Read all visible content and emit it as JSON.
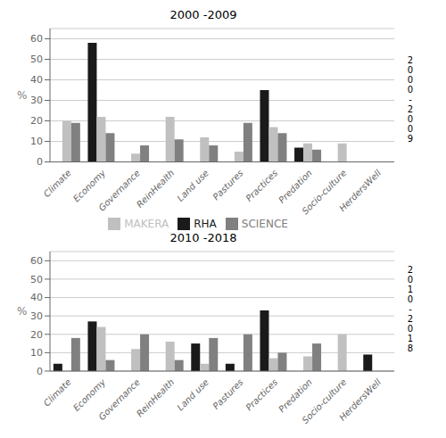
{
  "chart_data": [
    {
      "type": "bar",
      "title": "2000 -2009",
      "annotation": "2\n0\n0\n0\n-\n2\n0\n0\n9",
      "categories": [
        "Climate",
        "Economy",
        "Governance",
        "ReinHealth",
        "Land use",
        "Pastures",
        "Practices",
        "Predation",
        "Socio-culture",
        "HerdersWell"
      ],
      "series": [
        {
          "name": "RHA",
          "color": "#1a1a1a",
          "values": [
            0,
            58,
            0,
            0,
            0,
            0,
            35,
            7,
            0,
            0
          ]
        },
        {
          "name": "MAKERA",
          "color": "#c0c0c0",
          "values": [
            20,
            22,
            4,
            22,
            12,
            5,
            17,
            9,
            9,
            0
          ]
        },
        {
          "name": "SCIENCE",
          "color": "#808080",
          "values": [
            19,
            14,
            8,
            11,
            8,
            19,
            14,
            6,
            0,
            0
          ]
        }
      ],
      "ylabel": "%",
      "ylim": [
        0,
        65
      ],
      "yticks": [
        0,
        10,
        20,
        30,
        40,
        50,
        60
      ],
      "grid": true,
      "legend": "bottom"
    },
    {
      "type": "bar",
      "title": "2010 -2018",
      "annotation": "2\n0\n1\n0\n-\n2\n0\n1\n8",
      "categories": [
        "Climate",
        "Economy",
        "Governance",
        "ReinHealth",
        "Land use",
        "Pastures",
        "Practices",
        "Predation",
        "Socio-culture",
        "HerdersWell"
      ],
      "series": [
        {
          "name": "RHA",
          "color": "#1a1a1a",
          "values": [
            4,
            27,
            0,
            0,
            15,
            4,
            33,
            0,
            0,
            9
          ]
        },
        {
          "name": "MAKERA",
          "color": "#c0c0c0",
          "values": [
            0,
            24,
            12,
            16,
            4,
            0,
            7,
            8,
            20,
            0
          ]
        },
        {
          "name": "SCIENCE",
          "color": "#808080",
          "values": [
            18,
            6,
            20,
            6,
            18,
            20,
            10,
            15,
            0,
            0
          ]
        }
      ],
      "ylabel": "%",
      "ylim": [
        0,
        65
      ],
      "yticks": [
        0,
        10,
        20,
        30,
        40,
        50,
        60
      ],
      "grid": true
    }
  ]
}
